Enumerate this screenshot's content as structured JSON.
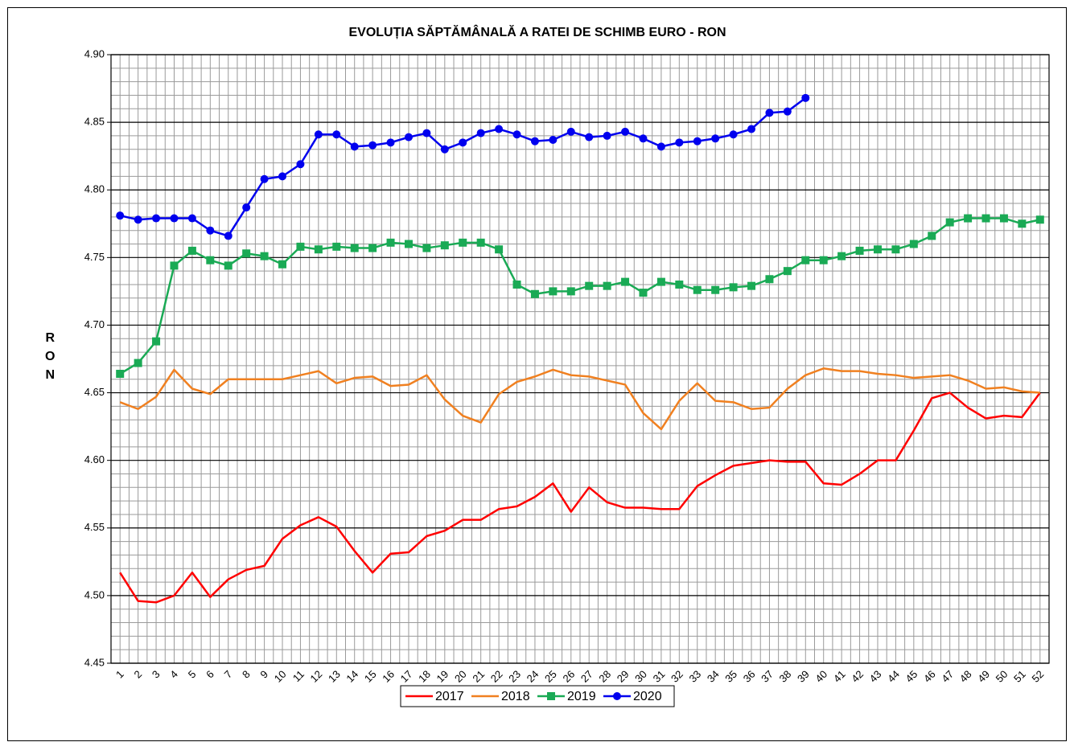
{
  "chart_data": {
    "type": "line",
    "title": "EVOLUȚIA SĂPTĂMÂNALĂ A RATEI DE SCHIMB EURO - RON",
    "y_label": "RON",
    "categories": [
      "1",
      "2",
      "3",
      "4",
      "5",
      "6",
      "7",
      "8",
      "9",
      "10",
      "11",
      "12",
      "13",
      "14",
      "15",
      "16",
      "17",
      "18",
      "19",
      "20",
      "21",
      "22",
      "23",
      "24",
      "25",
      "26",
      "27",
      "28",
      "29",
      "30",
      "31",
      "32",
      "33",
      "34",
      "35",
      "36",
      "37",
      "38",
      "39",
      "40",
      "41",
      "42",
      "43",
      "44",
      "45",
      "46",
      "47",
      "48",
      "49",
      "50",
      "51",
      "52"
    ],
    "ylim": [
      4.45,
      4.9
    ],
    "yticks": [
      4.45,
      {
        "value": 4.5,
        "label": "4.50"
      },
      4.55,
      {
        "value": 4.6,
        "label": "4.60"
      },
      4.65,
      {
        "value": 4.7,
        "label": "4.70"
      },
      4.75,
      {
        "value": 4.8,
        "label": "4.80"
      },
      4.85,
      {
        "value": 4.9,
        "label": "4.90"
      }
    ],
    "grid": true,
    "minor_grid": true,
    "legend": "bottom",
    "series": [
      {
        "name": "2017",
        "color": "#ff0000",
        "marker": "none",
        "values": [
          4.517,
          4.496,
          4.495,
          4.5,
          4.517,
          4.499,
          4.512,
          4.519,
          4.522,
          4.542,
          4.552,
          4.558,
          4.551,
          4.533,
          4.517,
          4.531,
          4.532,
          4.544,
          4.548,
          4.556,
          4.556,
          4.564,
          4.566,
          4.573,
          4.583,
          4.562,
          4.58,
          4.569,
          4.565,
          4.565,
          4.564,
          4.564,
          4.581,
          4.589,
          4.596,
          4.598,
          4.6,
          4.599,
          4.599,
          4.583,
          4.582,
          4.59,
          4.6,
          4.6,
          4.622,
          4.646,
          4.65,
          4.639,
          4.631,
          4.633,
          4.632,
          4.65
        ]
      },
      {
        "name": "2018",
        "color": "#f08020",
        "marker": "none",
        "values": [
          4.643,
          4.638,
          4.647,
          4.667,
          4.653,
          4.649,
          4.66,
          4.66,
          4.66,
          4.66,
          4.663,
          4.666,
          4.657,
          4.661,
          4.662,
          4.655,
          4.656,
          4.663,
          4.645,
          4.633,
          4.628,
          4.649,
          4.658,
          4.662,
          4.667,
          4.663,
          4.662,
          4.659,
          4.656,
          4.635,
          4.623,
          4.644,
          4.657,
          4.644,
          4.643,
          4.638,
          4.639,
          4.653,
          4.663,
          4.668,
          4.666,
          4.666,
          4.664,
          4.663,
          4.661,
          4.662,
          4.663,
          4.659,
          4.653,
          4.654,
          4.651,
          4.65
        ]
      },
      {
        "name": "2019",
        "color": "#1aaa55",
        "marker": "square",
        "values": [
          4.664,
          4.672,
          4.688,
          4.744,
          4.755,
          4.748,
          4.744,
          4.753,
          4.751,
          4.745,
          4.758,
          4.756,
          4.758,
          4.757,
          4.757,
          4.761,
          4.76,
          4.757,
          4.759,
          4.761,
          4.761,
          4.756,
          4.73,
          4.723,
          4.725,
          4.725,
          4.729,
          4.729,
          4.732,
          4.724,
          4.732,
          4.73,
          4.726,
          4.726,
          4.728,
          4.729,
          4.734,
          4.74,
          4.748,
          4.748,
          4.751,
          4.755,
          4.756,
          4.756,
          4.76,
          4.766,
          4.776,
          4.779,
          4.779,
          4.779,
          4.775,
          4.778
        ]
      },
      {
        "name": "2020",
        "color": "#0000ee",
        "marker": "circle",
        "values": [
          4.781,
          4.778,
          4.779,
          4.779,
          4.779,
          4.77,
          4.766,
          4.787,
          4.808,
          4.81,
          4.819,
          4.841,
          4.841,
          4.832,
          4.833,
          4.835,
          4.839,
          4.842,
          4.83,
          4.835,
          4.842,
          4.845,
          4.841,
          4.836,
          4.837,
          4.843,
          4.839,
          4.84,
          4.843,
          4.838,
          4.832,
          4.835,
          4.836,
          4.838,
          4.841,
          4.845,
          4.857,
          4.858,
          4.868,
          null,
          null,
          null,
          null,
          null,
          null,
          null,
          null,
          null,
          null,
          null,
          null,
          null
        ]
      }
    ]
  }
}
